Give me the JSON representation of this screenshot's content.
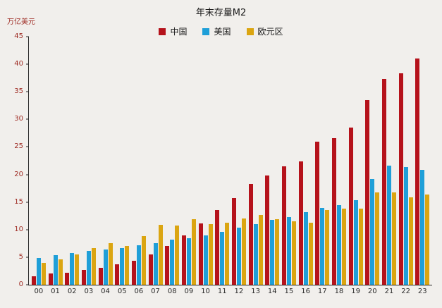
{
  "chart_data": {
    "type": "bar",
    "title": "年末存量M2",
    "ylabel": "万亿美元",
    "xlabel": "",
    "ylim": [
      0,
      45
    ],
    "ytick_step": 5,
    "grid": false,
    "legend_position": "top-center",
    "categories": [
      "00",
      "01",
      "02",
      "03",
      "04",
      "05",
      "06",
      "07",
      "08",
      "09",
      "10",
      "11",
      "12",
      "13",
      "14",
      "15",
      "16",
      "17",
      "18",
      "19",
      "20",
      "21",
      "22",
      "23"
    ],
    "series": [
      {
        "name": "中国",
        "key": "china",
        "color": "#b5121b",
        "values": [
          1.6,
          2.0,
          2.2,
          2.7,
          3.1,
          3.7,
          4.4,
          5.5,
          7.0,
          8.9,
          11.1,
          13.5,
          15.7,
          18.3,
          19.8,
          21.5,
          22.4,
          26.0,
          26.6,
          28.5,
          33.5,
          37.3,
          38.3,
          41.0
        ]
      },
      {
        "name": "美国",
        "key": "usa",
        "color": "#1f9fd8",
        "values": [
          4.9,
          5.4,
          5.8,
          6.1,
          6.4,
          6.7,
          7.1,
          7.5,
          8.2,
          8.5,
          9.0,
          9.6,
          10.4,
          11.0,
          11.7,
          12.3,
          13.2,
          13.9,
          14.4,
          15.3,
          19.2,
          21.6,
          21.4,
          20.9
        ]
      },
      {
        "name": "欧元区",
        "key": "eurozone",
        "color": "#dba511",
        "values": [
          4.0,
          4.6,
          5.5,
          6.6,
          7.6,
          7.0,
          8.8,
          10.9,
          10.8,
          11.9,
          11.0,
          11.2,
          12.0,
          12.7,
          11.9,
          11.5,
          11.2,
          13.5,
          13.8,
          13.8,
          16.8,
          16.7,
          15.9,
          16.4
        ]
      }
    ]
  }
}
